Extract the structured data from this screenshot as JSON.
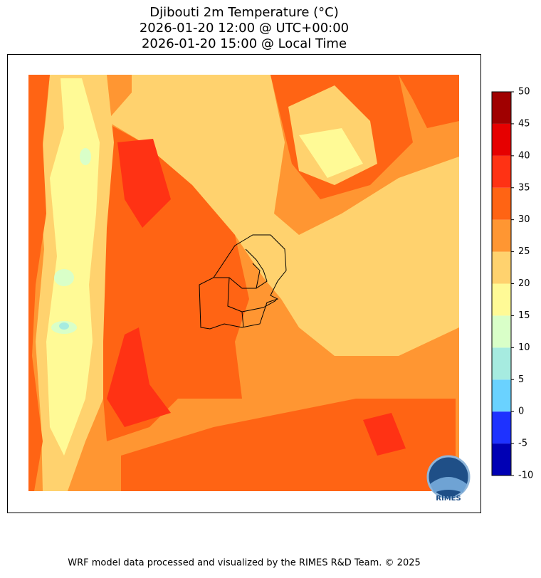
{
  "map": {
    "title": [
      "Djibouti 2m Temperature (°C)",
      "2026-01-20 12:00 @ UTC+00:00",
      "2026-01-20 15:00 @ Local Time"
    ],
    "colorbar": {
      "ticks": [
        -10,
        -5,
        0,
        5,
        10,
        15,
        20,
        25,
        30,
        35,
        40,
        45,
        50
      ],
      "colors": [
        "#0000b4",
        "#1e32ff",
        "#6ad2ff",
        "#a6ebe0",
        "#d9ffc8",
        "#fffa96",
        "#ffd26e",
        "#ff9632",
        "#ff6414",
        "#ff3214",
        "#e60000",
        "#a00000"
      ]
    },
    "logo_text": "RIMES",
    "footer": "WRF model data processed and visualized by the RIMES R&D Team. © 2025"
  }
}
